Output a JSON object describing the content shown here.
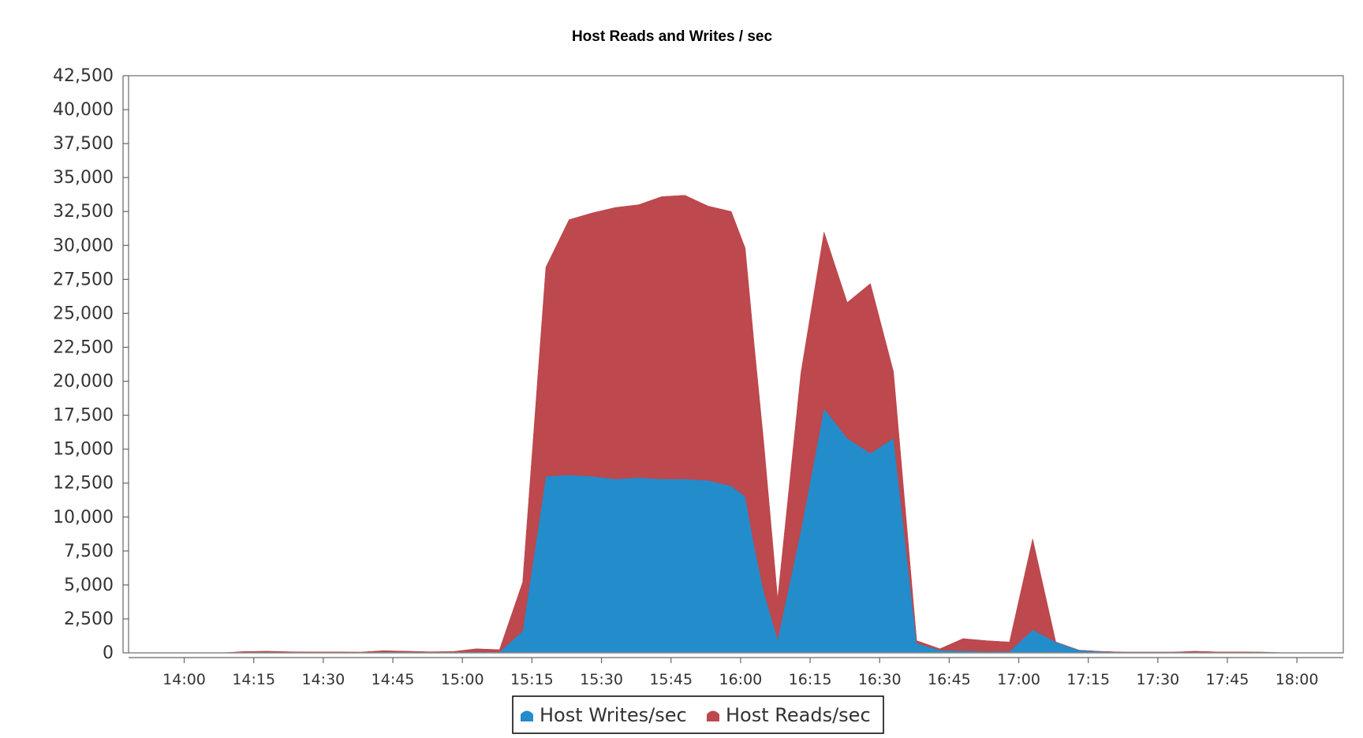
{
  "chart_data": {
    "type": "area",
    "stacked": true,
    "title": "Host Reads and Writes / sec",
    "xlabel": "",
    "ylabel": "",
    "ylim": [
      0,
      42500
    ],
    "y_ticks": [
      "0",
      "2,500",
      "5,000",
      "7,500",
      "10,000",
      "12,500",
      "15,000",
      "17,500",
      "20,000",
      "22,500",
      "25,000",
      "27,500",
      "30,000",
      "32,500",
      "35,000",
      "37,500",
      "40,000",
      "42,500"
    ],
    "xlim": [
      "13:48",
      "18:10"
    ],
    "x_ticks": [
      "14:00",
      "14:15",
      "14:30",
      "14:45",
      "15:00",
      "15:15",
      "15:30",
      "15:45",
      "16:00",
      "16:15",
      "16:30",
      "16:45",
      "17:00",
      "17:15",
      "17:30",
      "17:45",
      "18:00"
    ],
    "x": [
      "13:48",
      "13:58",
      "14:08",
      "14:13",
      "14:18",
      "14:23",
      "14:28",
      "14:33",
      "14:38",
      "14:43",
      "14:48",
      "14:53",
      "14:58",
      "15:03",
      "15:08",
      "15:13",
      "15:18",
      "15:23",
      "15:28",
      "15:33",
      "15:38",
      "15:43",
      "15:48",
      "15:53",
      "15:58",
      "16:01",
      "16:03",
      "16:05",
      "16:08",
      "16:13",
      "16:18",
      "16:23",
      "16:28",
      "16:33",
      "16:38",
      "16:43",
      "16:48",
      "16:53",
      "16:58",
      "17:03",
      "17:08",
      "17:13",
      "17:18",
      "17:23",
      "17:28",
      "17:33",
      "17:38",
      "17:43",
      "17:48",
      "17:53",
      "17:58",
      "18:03",
      "18:10"
    ],
    "series": [
      {
        "name": "Host Writes/sec",
        "color": "#238ccb",
        "values": [
          0,
          0,
          0,
          50,
          60,
          40,
          30,
          30,
          20,
          80,
          60,
          40,
          50,
          80,
          60,
          1600,
          13000,
          13100,
          13000,
          12800,
          12900,
          12800,
          12800,
          12700,
          12300,
          11500,
          7800,
          4500,
          1000,
          9000,
          18000,
          15800,
          14700,
          15800,
          700,
          200,
          150,
          100,
          100,
          1700,
          800,
          200,
          100,
          50,
          50,
          50,
          50,
          30,
          30,
          20,
          0,
          0,
          0
        ]
      },
      {
        "name": "Host Reads/sec",
        "color": "#bd484d",
        "values": [
          0,
          0,
          0,
          50,
          60,
          40,
          40,
          40,
          40,
          80,
          60,
          40,
          50,
          220,
          180,
          3600,
          15400,
          18800,
          19400,
          20000,
          20100,
          20800,
          20900,
          20200,
          20200,
          18300,
          14700,
          11000,
          3000,
          11600,
          13000,
          10000,
          12500,
          4900,
          200,
          100,
          900,
          800,
          700,
          6700,
          0,
          0,
          0,
          0,
          0,
          0,
          70,
          40,
          40,
          40,
          0,
          0,
          0
        ]
      }
    ],
    "legend_position": "bottom",
    "grid": false
  }
}
